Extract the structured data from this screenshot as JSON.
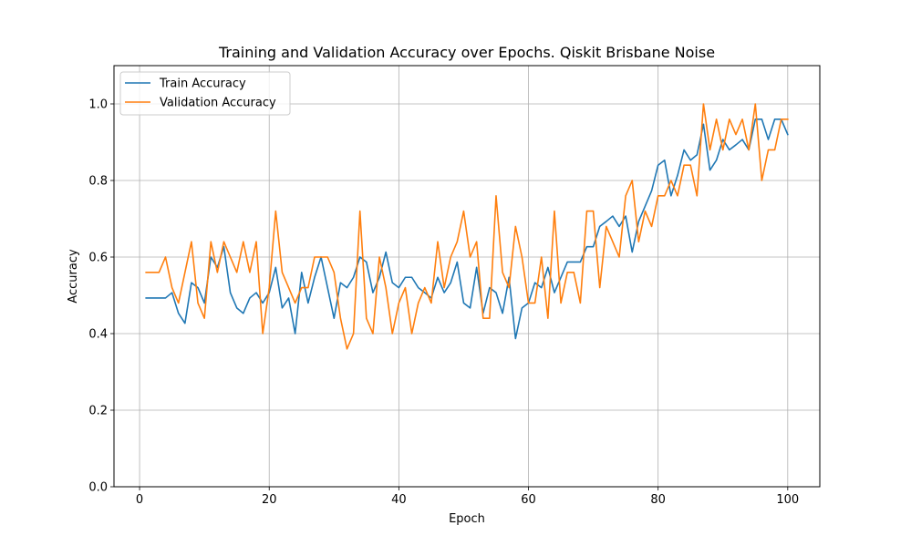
{
  "chart_data": {
    "type": "line",
    "title": "Training and Validation Accuracy over Epochs. Qiskit Brisbane Noise",
    "xlabel": "Epoch",
    "ylabel": "Accuracy",
    "xlim": [
      -3.95,
      104.95
    ],
    "ylim": [
      0,
      1.1
    ],
    "xticks": [
      0,
      20,
      40,
      60,
      80,
      100
    ],
    "xtick_labels": [
      "0",
      "20",
      "40",
      "60",
      "80",
      "100"
    ],
    "yticks": [
      0,
      0.2,
      0.4,
      0.6,
      0.8,
      1.0
    ],
    "ytick_labels": [
      "0.0",
      "0.2",
      "0.4",
      "0.6",
      "0.8",
      "1.0"
    ],
    "grid": true,
    "legend_position": "upper left",
    "x": [
      1,
      2,
      3,
      4,
      5,
      6,
      7,
      8,
      9,
      10,
      11,
      12,
      13,
      14,
      15,
      16,
      17,
      18,
      19,
      20,
      21,
      22,
      23,
      24,
      25,
      26,
      27,
      28,
      29,
      30,
      31,
      32,
      33,
      34,
      35,
      36,
      37,
      38,
      39,
      40,
      41,
      42,
      43,
      44,
      45,
      46,
      47,
      48,
      49,
      50,
      51,
      52,
      53,
      54,
      55,
      56,
      57,
      58,
      59,
      60,
      61,
      62,
      63,
      64,
      65,
      66,
      67,
      68,
      69,
      70,
      71,
      72,
      73,
      74,
      75,
      76,
      77,
      78,
      79,
      80,
      81,
      82,
      83,
      84,
      85,
      86,
      87,
      88,
      89,
      90,
      91,
      92,
      93,
      94,
      95,
      96,
      97,
      98,
      99,
      100
    ],
    "series": [
      {
        "name": "Train Accuracy",
        "color": "#1f77b4",
        "values": [
          0.493,
          0.493,
          0.493,
          0.493,
          0.507,
          0.453,
          0.427,
          0.533,
          0.52,
          0.48,
          0.6,
          0.573,
          0.627,
          0.507,
          0.467,
          0.453,
          0.493,
          0.507,
          0.48,
          0.507,
          0.573,
          0.467,
          0.493,
          0.4,
          0.56,
          0.48,
          0.547,
          0.6,
          0.52,
          0.44,
          0.533,
          0.52,
          0.547,
          0.6,
          0.587,
          0.507,
          0.547,
          0.613,
          0.533,
          0.52,
          0.547,
          0.547,
          0.52,
          0.507,
          0.493,
          0.547,
          0.507,
          0.533,
          0.587,
          0.48,
          0.467,
          0.573,
          0.453,
          0.52,
          0.507,
          0.453,
          0.547,
          0.387,
          0.467,
          0.48,
          0.533,
          0.52,
          0.573,
          0.507,
          0.547,
          0.587,
          0.587,
          0.587,
          0.627,
          0.627,
          0.68,
          0.693,
          0.707,
          0.68,
          0.707,
          0.613,
          0.693,
          0.733,
          0.773,
          0.84,
          0.853,
          0.76,
          0.813,
          0.88,
          0.853,
          0.867,
          0.947,
          0.827,
          0.853,
          0.907,
          0.88,
          0.893,
          0.907,
          0.88,
          0.96,
          0.96,
          0.907,
          0.96,
          0.96,
          0.92
        ]
      },
      {
        "name": "Validation Accuracy",
        "color": "#ff7f0e",
        "values": [
          0.56,
          0.56,
          0.56,
          0.6,
          0.52,
          0.48,
          0.56,
          0.64,
          0.48,
          0.44,
          0.64,
          0.56,
          0.64,
          0.6,
          0.56,
          0.64,
          0.56,
          0.64,
          0.4,
          0.52,
          0.72,
          0.56,
          0.52,
          0.48,
          0.52,
          0.52,
          0.6,
          0.6,
          0.6,
          0.56,
          0.44,
          0.36,
          0.4,
          0.72,
          0.44,
          0.4,
          0.6,
          0.52,
          0.4,
          0.48,
          0.52,
          0.4,
          0.48,
          0.52,
          0.48,
          0.64,
          0.52,
          0.6,
          0.64,
          0.72,
          0.6,
          0.64,
          0.44,
          0.44,
          0.76,
          0.56,
          0.52,
          0.68,
          0.6,
          0.48,
          0.48,
          0.6,
          0.44,
          0.72,
          0.48,
          0.56,
          0.56,
          0.48,
          0.72,
          0.72,
          0.52,
          0.68,
          0.64,
          0.6,
          0.76,
          0.8,
          0.64,
          0.72,
          0.68,
          0.76,
          0.76,
          0.8,
          0.76,
          0.84,
          0.84,
          0.76,
          1.0,
          0.88,
          0.96,
          0.88,
          0.96,
          0.92,
          0.96,
          0.88,
          1.0,
          0.8,
          0.88,
          0.88,
          0.96,
          0.96
        ]
      }
    ]
  }
}
